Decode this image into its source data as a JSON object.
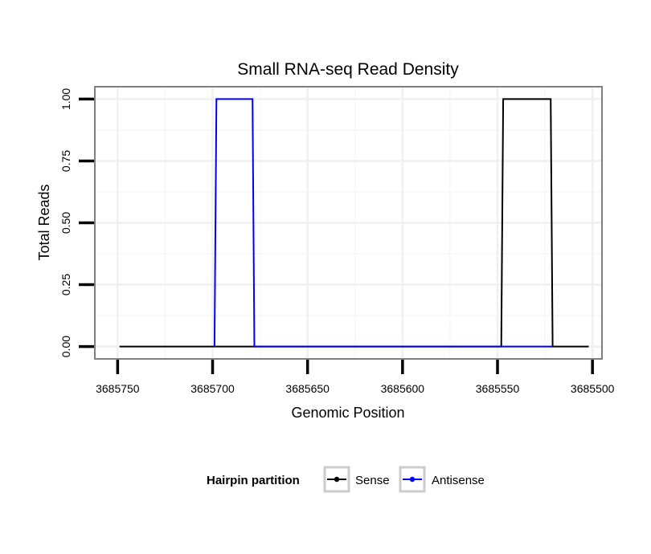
{
  "chart_data": {
    "type": "line",
    "title": "Small RNA-seq Read Density",
    "xlabel": "Genomic Position",
    "ylabel": "Total Reads",
    "x_reversed": true,
    "xlim": [
      3685762,
      3685495
    ],
    "ylim": [
      -0.05,
      1.05
    ],
    "x_ticks": [
      3685750,
      3685700,
      3685650,
      3685600,
      3685550,
      3685500
    ],
    "x_tick_labels": [
      "3685750",
      "3685700",
      "3685650",
      "3685600",
      "3685550",
      "3685500"
    ],
    "y_ticks": [
      0.0,
      0.25,
      0.5,
      0.75,
      1.0
    ],
    "y_tick_labels": [
      "0.00",
      "0.25",
      "0.50",
      "0.75",
      "1.00"
    ],
    "grid": true,
    "legend": {
      "title": "Hairpin partition",
      "placement": "bottom",
      "entries": [
        "Sense",
        "Antisense"
      ]
    },
    "series": [
      {
        "name": "Sense",
        "color": "#000000",
        "x": [
          3685749,
          3685548,
          3685547,
          3685522,
          3685521,
          3685502
        ],
        "y": [
          0,
          0,
          1,
          1,
          0,
          0
        ]
      },
      {
        "name": "Antisense",
        "color": "#0000ff",
        "x": [
          3685699,
          3685698,
          3685679,
          3685678,
          3685547,
          3685546,
          3685522,
          3685521
        ],
        "y": [
          0,
          1,
          1,
          0,
          0,
          0,
          0,
          0
        ]
      }
    ]
  }
}
